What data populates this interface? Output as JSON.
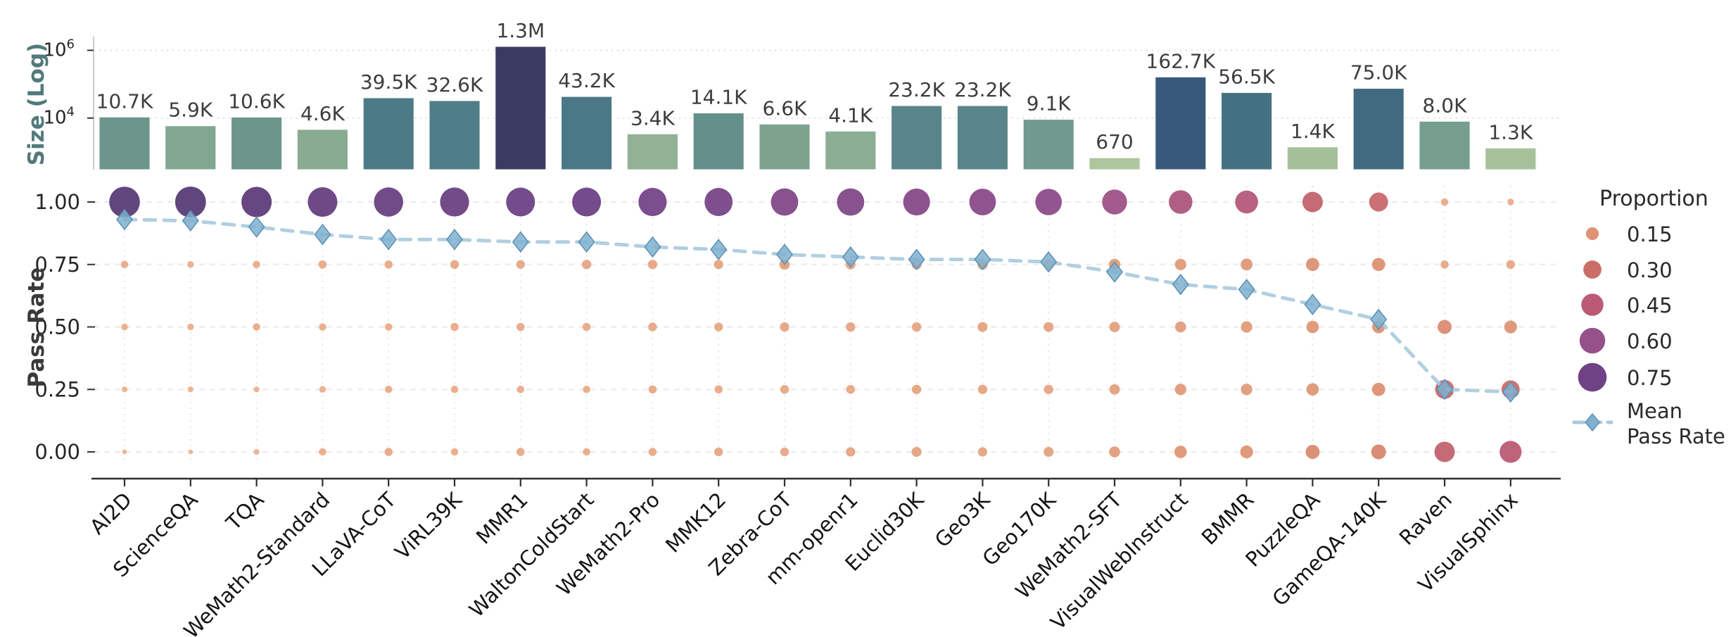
{
  "chart_data": {
    "type": "bar+bubble+line combo",
    "title": "",
    "categories": [
      "AI2D",
      "ScienceQA",
      "TQA",
      "WeMath2-Standard",
      "LLaVA-CoT",
      "ViRL39K",
      "MMR1",
      "WaltonColdStart",
      "WeMath2-Pro",
      "MMK12",
      "Zebra-CoT",
      "mm-openr1",
      "Euclid30K",
      "Geo3K",
      "Geo170K",
      "WeMath2-SFT",
      "VisualWebInstruct",
      "BMMR",
      "PuzzleQA",
      "GameQA-140K",
      "Raven",
      "VisualSphinx"
    ],
    "bar_panel": {
      "ylabel": "Size (Log)",
      "scale": "log",
      "ymin": 300,
      "ymax": 2200000,
      "ytick_exponents": [
        4,
        6
      ],
      "values": [
        10700,
        5900,
        10600,
        4600,
        39500,
        32600,
        1300000,
        43200,
        3400,
        14100,
        6600,
        4100,
        23200,
        23200,
        9100,
        670,
        162700,
        56500,
        1400,
        75000,
        8000,
        1300
      ],
      "value_labels": [
        "10.7K",
        "5.9K",
        "10.6K",
        "4.6K",
        "39.5K",
        "32.6K",
        "1.3M",
        "43.2K",
        "3.4K",
        "14.1K",
        "6.6K",
        "4.1K",
        "23.2K",
        "23.2K",
        "9.1K",
        "670",
        "162.7K",
        "56.5K",
        "1.4K",
        "75.0K",
        "8.0K",
        "1.3K"
      ],
      "bar_colors": [
        "#6c958c",
        "#82a790",
        "#6c958c",
        "#88ab91",
        "#4c7a87",
        "#4f7d88",
        "#3b3a63",
        "#4a7886",
        "#91b294",
        "#649089",
        "#7da38f",
        "#8cae93",
        "#588589",
        "#588589",
        "#71998d",
        "#aec69d",
        "#39597a",
        "#447181",
        "#a5c099",
        "#3f6a80",
        "#769d8e",
        "#a6c19a"
      ]
    },
    "scatter_panel": {
      "ylabel": "Pass Rate",
      "ytick_labels": [
        "0.00",
        "0.25",
        "0.50",
        "0.75",
        "1.00"
      ],
      "levels": [
        0.0,
        0.25,
        0.5,
        0.75,
        1.0
      ],
      "proportions": [
        [
          0.02,
          0.03,
          0.04,
          0.05,
          0.86
        ],
        [
          0.02,
          0.03,
          0.04,
          0.04,
          0.87
        ],
        [
          0.03,
          0.03,
          0.05,
          0.05,
          0.84
        ],
        [
          0.05,
          0.04,
          0.05,
          0.06,
          0.8
        ],
        [
          0.06,
          0.05,
          0.05,
          0.06,
          0.78
        ],
        [
          0.05,
          0.05,
          0.06,
          0.07,
          0.77
        ],
        [
          0.06,
          0.05,
          0.06,
          0.07,
          0.76
        ],
        [
          0.05,
          0.05,
          0.06,
          0.08,
          0.76
        ],
        [
          0.06,
          0.06,
          0.07,
          0.08,
          0.73
        ],
        [
          0.07,
          0.06,
          0.07,
          0.08,
          0.72
        ],
        [
          0.07,
          0.07,
          0.08,
          0.1,
          0.68
        ],
        [
          0.08,
          0.07,
          0.08,
          0.09,
          0.68
        ],
        [
          0.09,
          0.08,
          0.08,
          0.09,
          0.66
        ],
        [
          0.08,
          0.08,
          0.09,
          0.1,
          0.65
        ],
        [
          0.09,
          0.08,
          0.09,
          0.1,
          0.64
        ],
        [
          0.11,
          0.1,
          0.1,
          0.12,
          0.57
        ],
        [
          0.14,
          0.12,
          0.11,
          0.12,
          0.51
        ],
        [
          0.15,
          0.12,
          0.12,
          0.13,
          0.48
        ],
        [
          0.18,
          0.14,
          0.14,
          0.16,
          0.38
        ],
        [
          0.2,
          0.16,
          0.15,
          0.16,
          0.33
        ],
        [
          0.38,
          0.33,
          0.18,
          0.06,
          0.05
        ],
        [
          0.44,
          0.3,
          0.15,
          0.07,
          0.04
        ]
      ],
      "mean_pass_rate": [
        0.93,
        0.925,
        0.9,
        0.87,
        0.85,
        0.85,
        0.84,
        0.84,
        0.82,
        0.81,
        0.79,
        0.78,
        0.77,
        0.77,
        0.76,
        0.72,
        0.67,
        0.65,
        0.59,
        0.53,
        0.25,
        0.24
      ]
    },
    "legend": {
      "title": "Proportion",
      "size_labels": [
        "0.15",
        "0.30",
        "0.45",
        "0.60",
        "0.75"
      ],
      "size_values": [
        0.15,
        0.3,
        0.45,
        0.6,
        0.75
      ],
      "mean_label_line1": "Mean",
      "mean_label_line2": "Pass Rate"
    },
    "colors": {
      "mean_line": "#a8cade",
      "mean_marker_fill": "#7fb0cf",
      "mean_marker_edge": "#5e92b5",
      "size_axis_label": "#527a7d",
      "pass_axis_label": "#3a3a3a",
      "tick_text": "#262626",
      "bar_value_text": "#3d3d3d",
      "axis_line": "#2f2f2f",
      "grid_dotted": "#e3dede",
      "grid_dashed": "#f2ecec",
      "left_spine": "#cccccc",
      "proportion_scale_stops": [
        [
          0.0,
          "#f0b793"
        ],
        [
          0.15,
          "#dd9474"
        ],
        [
          0.3,
          "#cb6d68"
        ],
        [
          0.45,
          "#bb5a75"
        ],
        [
          0.6,
          "#96508a"
        ],
        [
          0.75,
          "#6f4286"
        ],
        [
          0.9,
          "#533a72"
        ]
      ]
    },
    "layout": {
      "grid": true,
      "legend_position": "right",
      "x_label_rotation_deg": 45
    }
  }
}
